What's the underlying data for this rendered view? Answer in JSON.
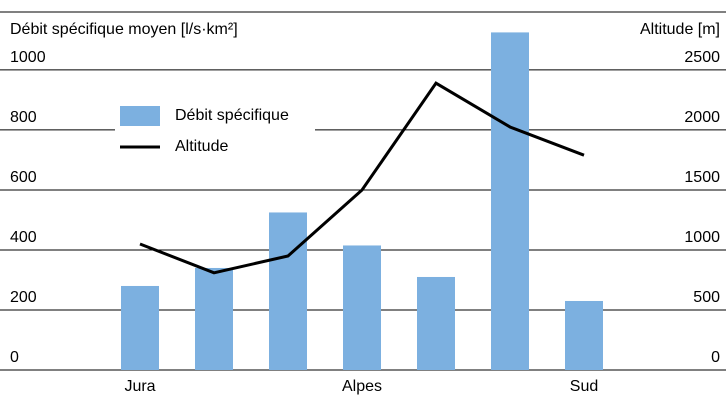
{
  "chart_data": {
    "type": "bar_line",
    "y_label": "Débit spécifique moyen [l/s·km²]",
    "y2_label": "Altitude [m]",
    "categories": [
      "Jura",
      null,
      null,
      "Alpes",
      null,
      null,
      "Sud"
    ],
    "series": [
      {
        "name": "Débit spécifique",
        "color": "#7cb0e0",
        "type": "bar",
        "values": [
          280,
          340,
          525,
          415,
          310,
          1125,
          230
        ]
      },
      {
        "name": "Altitude",
        "color": "#000000",
        "type": "line",
        "axis": "y2",
        "values": [
          1050,
          810,
          950,
          1500,
          2390,
          2025,
          1790
        ]
      }
    ],
    "ylim": [
      0,
      1193
    ],
    "yticks": [
      0,
      200,
      400,
      600,
      800,
      1000
    ],
    "y2lim": [
      0,
      2983
    ],
    "y2ticks": [
      0,
      500,
      1000,
      1500,
      2000,
      2500
    ],
    "grid": true
  }
}
